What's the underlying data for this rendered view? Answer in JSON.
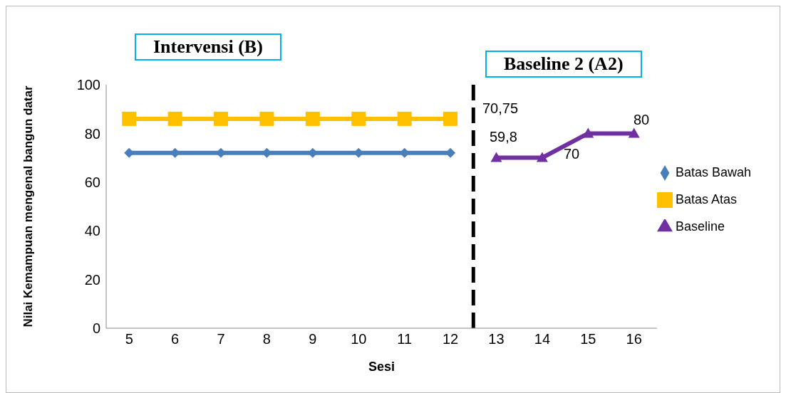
{
  "chart_data": {
    "type": "line",
    "xlabel": "Sesi",
    "ylabel": "Nilai Kemampuan mengenal bangun datar",
    "x": [
      5,
      6,
      7,
      8,
      9,
      10,
      11,
      12,
      13,
      14,
      15,
      16
    ],
    "xlim": [
      4.5,
      16.5
    ],
    "xticks": [
      5,
      6,
      7,
      8,
      9,
      10,
      11,
      12,
      13,
      14,
      15,
      16
    ],
    "ylim": [
      0,
      100
    ],
    "yticks": [
      0,
      20,
      40,
      60,
      80,
      100
    ],
    "series": [
      {
        "name": "Batas Bawah",
        "color": "#4a7ebb",
        "marker": "diamond",
        "values": [
          72,
          72,
          72,
          72,
          72,
          72,
          72,
          72,
          null,
          null,
          null,
          null
        ]
      },
      {
        "name": "Batas Atas",
        "color": "#ffc000",
        "marker": "square",
        "values": [
          86,
          86,
          86,
          86,
          86,
          86,
          86,
          86,
          null,
          null,
          null,
          null
        ]
      },
      {
        "name": "Baseline",
        "color": "#7030a0",
        "marker": "triangle",
        "values": [
          null,
          null,
          null,
          null,
          null,
          null,
          null,
          null,
          70,
          70,
          80,
          80
        ]
      }
    ],
    "ref_lines": [
      {
        "axis": "x",
        "value": 12.5,
        "color": "#000000",
        "line_style": "dashed"
      }
    ],
    "annotations": [
      "Intervensi (B)",
      "Baseline 2 (A2)",
      "70,75",
      "59,8",
      "70",
      "80"
    ],
    "grid": false,
    "legend": "right",
    "line_style": "solid"
  }
}
